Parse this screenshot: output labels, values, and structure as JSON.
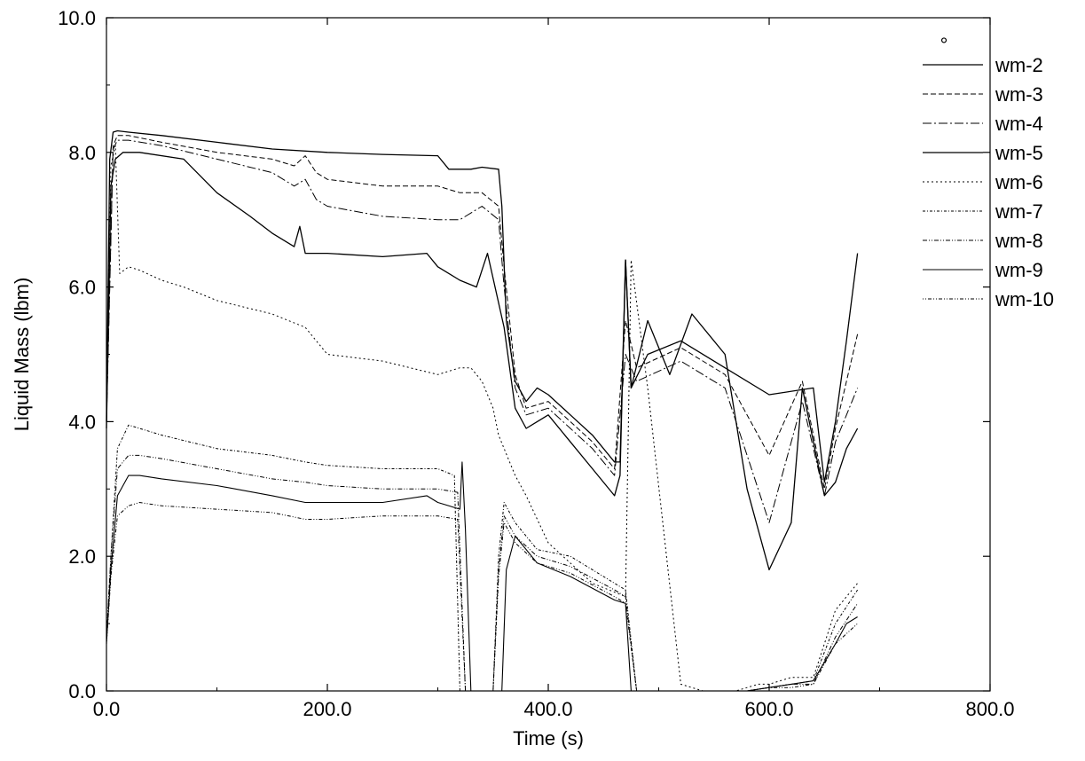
{
  "chart_data": {
    "type": "line",
    "title": "",
    "xlabel": "Time (s)",
    "ylabel": "Liquid Mass (lbm)",
    "xlim": [
      0,
      800
    ],
    "ylim": [
      0,
      10
    ],
    "xticks": [
      "0.0",
      "200.0",
      "400.0",
      "600.0",
      "800.0"
    ],
    "yticks": [
      "0.0",
      "2.0",
      "4.0",
      "6.0",
      "8.0",
      "10.0"
    ],
    "grid": false,
    "legend_position": "right",
    "legend_marker": "°",
    "series": [
      {
        "name": "wm-2",
        "dash": "",
        "width": 1.3,
        "x": [
          0,
          3,
          6,
          10,
          20,
          50,
          100,
          150,
          200,
          250,
          300,
          310,
          330,
          340,
          355,
          358,
          362,
          370,
          380,
          390,
          400,
          420,
          440,
          460,
          465,
          470,
          475,
          490,
          520,
          560,
          600,
          640,
          650,
          660,
          670,
          680
        ],
        "y": [
          4.0,
          7.9,
          8.3,
          8.32,
          8.3,
          8.25,
          8.15,
          8.05,
          8.0,
          7.97,
          7.95,
          7.75,
          7.75,
          7.78,
          7.75,
          7.2,
          5.5,
          4.6,
          4.3,
          4.5,
          4.4,
          4.1,
          3.8,
          3.4,
          3.4,
          6.4,
          4.5,
          5.0,
          5.2,
          4.8,
          4.4,
          4.5,
          3.1,
          4.0,
          5.2,
          6.5
        ]
      },
      {
        "name": "wm-3",
        "dash": "6 3",
        "width": 1.0,
        "x": [
          0,
          6,
          10,
          20,
          50,
          100,
          150,
          170,
          180,
          190,
          200,
          250,
          300,
          320,
          340,
          355,
          360,
          370,
          380,
          400,
          420,
          440,
          460,
          470,
          480,
          520,
          560,
          600,
          630,
          650,
          660,
          680
        ],
        "y": [
          4.0,
          8.1,
          8.25,
          8.25,
          8.15,
          8.0,
          7.9,
          7.8,
          7.95,
          7.7,
          7.6,
          7.5,
          7.5,
          7.4,
          7.4,
          7.2,
          6.3,
          4.7,
          4.2,
          4.3,
          4.0,
          3.7,
          3.3,
          5.5,
          4.8,
          5.1,
          4.7,
          3.5,
          4.6,
          3.0,
          3.9,
          5.3
        ]
      },
      {
        "name": "wm-4",
        "dash": "10 3 2 3",
        "width": 1.0,
        "x": [
          0,
          6,
          10,
          20,
          50,
          100,
          150,
          170,
          180,
          190,
          200,
          250,
          300,
          320,
          340,
          355,
          360,
          370,
          380,
          400,
          420,
          440,
          460,
          470,
          480,
          520,
          560,
          600,
          630,
          650,
          660,
          680
        ],
        "y": [
          4.0,
          8.05,
          8.18,
          8.18,
          8.1,
          7.9,
          7.7,
          7.5,
          7.6,
          7.3,
          7.2,
          7.05,
          7.0,
          7.0,
          7.2,
          7.0,
          6.0,
          4.5,
          4.1,
          4.2,
          3.9,
          3.6,
          3.2,
          5.0,
          4.6,
          4.9,
          4.5,
          2.5,
          4.3,
          2.9,
          3.7,
          4.5
        ]
      },
      {
        "name": "wm-5",
        "dash": "",
        "width": 1.3,
        "x": [
          0,
          4,
          8,
          15,
          30,
          70,
          100,
          130,
          150,
          170,
          175,
          180,
          200,
          250,
          290,
          300,
          320,
          335,
          345,
          360,
          370,
          380,
          390,
          400,
          420,
          440,
          460,
          465,
          470,
          475,
          490,
          510,
          530,
          560,
          580,
          600,
          620,
          630,
          650,
          660,
          670,
          680
        ],
        "y": [
          3.9,
          7.5,
          7.9,
          8.0,
          8.0,
          7.9,
          7.4,
          7.05,
          6.8,
          6.6,
          6.9,
          6.5,
          6.5,
          6.45,
          6.5,
          6.3,
          6.1,
          6.0,
          6.5,
          5.4,
          4.2,
          3.9,
          4.0,
          4.1,
          3.7,
          3.3,
          2.9,
          3.2,
          6.4,
          4.5,
          5.5,
          4.7,
          5.6,
          5.0,
          3.0,
          1.8,
          2.5,
          4.5,
          2.9,
          3.1,
          3.6,
          3.9
        ]
      },
      {
        "name": "wm-6",
        "dash": "2 3",
        "width": 1.0,
        "x": [
          0,
          4,
          8,
          12,
          20,
          30,
          50,
          70,
          100,
          150,
          180,
          200,
          250,
          300,
          320,
          330,
          340,
          350,
          355,
          370,
          380,
          400,
          440,
          470,
          475,
          490,
          520,
          540,
          560,
          570,
          580,
          590,
          600,
          610,
          620,
          640,
          660,
          680
        ],
        "y": [
          4.0,
          7.8,
          8.1,
          6.2,
          6.3,
          6.25,
          6.1,
          6.0,
          5.8,
          5.6,
          5.4,
          5.0,
          4.9,
          4.7,
          4.8,
          4.8,
          4.6,
          4.2,
          3.8,
          3.2,
          2.9,
          2.2,
          1.6,
          1.4,
          6.4,
          4.5,
          0.1,
          0.0,
          0.0,
          0.0,
          0.05,
          0.1,
          0.1,
          0.15,
          0.2,
          0.2,
          1.2,
          1.6
        ]
      },
      {
        "name": "wm-7",
        "dash": "3 2 1 2",
        "width": 1.0,
        "x": [
          0,
          4,
          10,
          20,
          30,
          50,
          100,
          150,
          180,
          200,
          250,
          300,
          315,
          320,
          325,
          340,
          350,
          355,
          360,
          370,
          390,
          420,
          460,
          470,
          480,
          500,
          520,
          540,
          560,
          580,
          600,
          620,
          640,
          660,
          680
        ],
        "y": [
          0.8,
          2.0,
          3.6,
          3.95,
          3.9,
          3.8,
          3.6,
          3.5,
          3.4,
          3.35,
          3.3,
          3.3,
          3.2,
          0.0,
          0.0,
          0.0,
          0.0,
          2.0,
          2.8,
          2.5,
          2.1,
          2.0,
          1.6,
          1.5,
          0.0,
          0.0,
          0.0,
          0.0,
          0.0,
          0.0,
          0.05,
          0.1,
          0.15,
          1.0,
          1.5
        ]
      },
      {
        "name": "wm-8",
        "dash": "5 2 1 2 1 2",
        "width": 1.0,
        "x": [
          0,
          4,
          10,
          20,
          30,
          50,
          100,
          150,
          180,
          200,
          250,
          300,
          318,
          325,
          330,
          340,
          350,
          355,
          360,
          370,
          390,
          420,
          460,
          470,
          480,
          500,
          520,
          540,
          560,
          580,
          600,
          620,
          640,
          660,
          680
        ],
        "y": [
          0.75,
          2.0,
          3.3,
          3.5,
          3.5,
          3.45,
          3.3,
          3.15,
          3.1,
          3.05,
          3.0,
          3.0,
          2.95,
          0.0,
          0.0,
          0.0,
          0.0,
          1.8,
          2.6,
          2.3,
          2.0,
          1.85,
          1.5,
          1.4,
          0.0,
          0.0,
          0.0,
          0.0,
          0.0,
          0.0,
          0.05,
          0.1,
          0.1,
          0.8,
          1.3
        ]
      },
      {
        "name": "wm-9",
        "dash": "",
        "width": 1.1,
        "x": [
          0,
          4,
          10,
          20,
          30,
          50,
          100,
          150,
          180,
          200,
          250,
          290,
          300,
          320,
          322,
          325,
          330,
          335,
          350,
          358,
          362,
          370,
          390,
          420,
          460,
          470,
          475,
          480,
          500,
          520,
          540,
          560,
          580,
          600,
          620,
          640,
          660,
          670,
          680
        ],
        "y": [
          0.7,
          1.8,
          2.9,
          3.2,
          3.2,
          3.15,
          3.05,
          2.9,
          2.8,
          2.8,
          2.8,
          2.9,
          2.8,
          2.7,
          3.4,
          2.4,
          0.0,
          0.0,
          0.0,
          0.0,
          1.8,
          2.3,
          1.9,
          1.7,
          1.35,
          1.3,
          0.0,
          0.0,
          0.0,
          0.0,
          0.0,
          0.0,
          0.0,
          0.05,
          0.1,
          0.15,
          0.7,
          1.0,
          1.1
        ]
      },
      {
        "name": "wm-10",
        "dash": "1 2 1 2 4 2",
        "width": 1.0,
        "x": [
          0,
          4,
          10,
          20,
          30,
          50,
          100,
          150,
          180,
          200,
          250,
          300,
          318,
          325,
          330,
          340,
          350,
          355,
          360,
          370,
          390,
          420,
          460,
          470,
          480,
          500,
          520,
          540,
          560,
          580,
          600,
          620,
          640,
          660,
          680
        ],
        "y": [
          0.7,
          1.7,
          2.6,
          2.75,
          2.8,
          2.75,
          2.7,
          2.65,
          2.55,
          2.55,
          2.6,
          2.6,
          2.55,
          0.0,
          0.0,
          0.0,
          0.0,
          1.7,
          2.5,
          2.2,
          1.9,
          1.75,
          1.4,
          1.3,
          0.0,
          0.0,
          0.0,
          0.0,
          0.0,
          0.0,
          0.05,
          0.05,
          0.1,
          0.7,
          1.0
        ]
      }
    ]
  }
}
